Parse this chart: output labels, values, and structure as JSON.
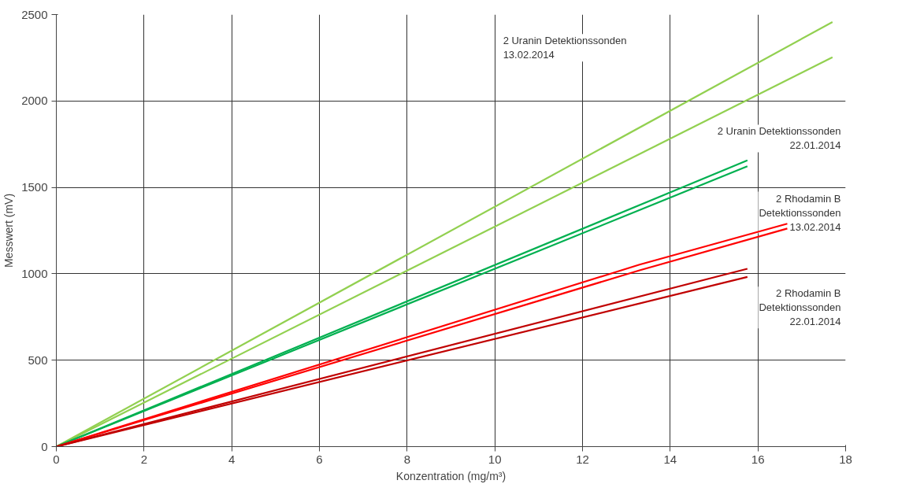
{
  "chart_data": {
    "type": "line",
    "xlabel": "Konzentration (mg/m³)",
    "ylabel": "Messwert (mV)",
    "xlim": [
      0,
      18
    ],
    "ylim": [
      0,
      2500
    ],
    "xticks": [
      0,
      2,
      4,
      6,
      8,
      10,
      12,
      14,
      16,
      18
    ],
    "yticks": [
      0,
      500,
      1000,
      1500,
      2000,
      2500
    ],
    "grid": true,
    "marker": "none",
    "line_style": "solid",
    "series": [
      {
        "color": "#92d050",
        "x": [
          0,
          17.7
        ],
        "values": [
          0,
          2457
        ]
      },
      {
        "color": "#92d050",
        "x": [
          0,
          17.7
        ],
        "values": [
          0,
          2253
        ]
      },
      {
        "color": "#00b050",
        "x": [
          0,
          15.76
        ],
        "values": [
          0,
          1656
        ]
      },
      {
        "color": "#00b050",
        "x": [
          0,
          15.76
        ],
        "values": [
          0,
          1622
        ]
      },
      {
        "color": "#ff0000",
        "x": [
          0,
          13.3,
          16.67
        ],
        "values": [
          0,
          1053,
          1290
        ]
      },
      {
        "color": "#ff0000",
        "x": [
          0,
          13.3,
          16.67
        ],
        "values": [
          0,
          1020,
          1262
        ]
      },
      {
        "color": "#c00000",
        "x": [
          0,
          15.76
        ],
        "values": [
          0,
          1029
        ]
      },
      {
        "color": "#c00000",
        "x": [
          0,
          15.76
        ],
        "values": [
          0,
          982
        ]
      }
    ],
    "annotations": [
      "2 Uranin Detektionssonden\n13.02.2014",
      "2 Uranin Detektionssonden\n22.01.2014",
      "2 Rhodamin B\nDetektionssonden\n13.02.2014",
      "2 Rhodamin B\nDetektionssonden\n22.01.2014"
    ]
  }
}
